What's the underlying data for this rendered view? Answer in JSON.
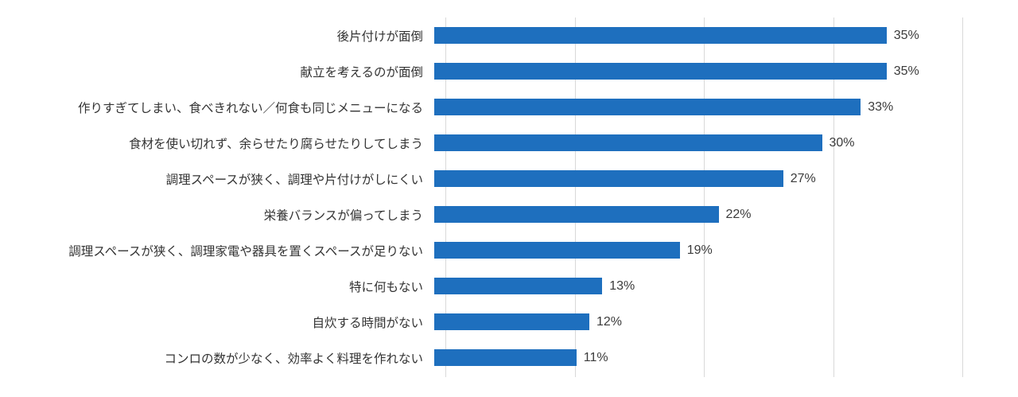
{
  "chart_data": {
    "type": "bar",
    "orientation": "horizontal",
    "title": "",
    "xlabel": "",
    "ylabel": "",
    "xlim": [
      0,
      40
    ],
    "gridline_interval": 10,
    "grid": true,
    "legend": false,
    "bar_color": "#1e6fbe",
    "gridline_color": "#d9d9d9",
    "value_suffix": "%",
    "categories": [
      "後片付けが面倒",
      "献立を考えるのが面倒",
      "作りすぎてしまい、食べきれない／何食も同じメニューになる",
      "食材を使い切れず、余らせたり腐らせたりしてしまう",
      "調理スペースが狭く、調理や片付けがしにくい",
      "栄養バランスが偏ってしまう",
      "調理スペースが狭く、調理家電や器具を置くスペースが足りない",
      "特に何もない",
      "自炊する時間がない",
      "コンロの数が少なく、効率よく料理を作れない"
    ],
    "values": [
      35,
      35,
      33,
      30,
      27,
      22,
      19,
      13,
      12,
      11
    ],
    "value_labels": [
      "35%",
      "35%",
      "33%",
      "30%",
      "27%",
      "22%",
      "19%",
      "13%",
      "12%",
      "11%"
    ]
  }
}
